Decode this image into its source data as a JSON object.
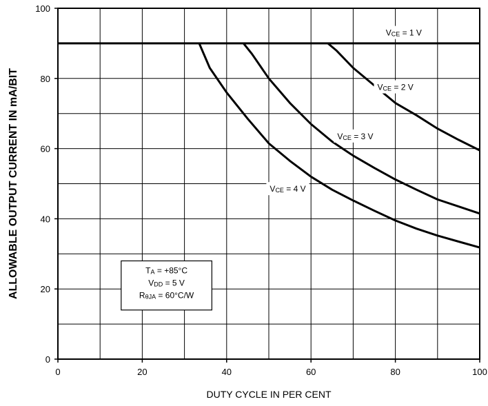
{
  "chart_data": {
    "type": "line",
    "title": "",
    "xlabel": "DUTY CYCLE IN PER CENT",
    "ylabel": "ALLOWABLE OUTPUT CURRENT IN mA/BIT",
    "xlim": [
      0,
      100
    ],
    "ylim": [
      0,
      100
    ],
    "x_ticks": [
      "0",
      "20",
      "40",
      "60",
      "80",
      "100"
    ],
    "y_ticks": [
      "0",
      "20",
      "40",
      "60",
      "80",
      "100"
    ],
    "grid": true,
    "series": [
      {
        "name": "VCE = 1 V",
        "x": [
          0,
          100
        ],
        "y": [
          90,
          90
        ]
      },
      {
        "name": "VCE = 2 V",
        "x": [
          64,
          66,
          70,
          75,
          80,
          85,
          90,
          95,
          100
        ],
        "y": [
          90,
          88,
          83,
          78,
          73,
          69.5,
          65.7,
          62.5,
          59.5
        ]
      },
      {
        "name": "VCE = 3 V",
        "x": [
          44,
          46,
          50,
          55,
          60,
          65,
          70,
          75,
          80,
          85,
          90,
          95,
          100
        ],
        "y": [
          90,
          87,
          80,
          73,
          67,
          62,
          58,
          54.5,
          51.2,
          48.3,
          45.5,
          43.5,
          41.5
        ]
      },
      {
        "name": "VCE = 4 V",
        "x": [
          33.5,
          36,
          40,
          45,
          50,
          55,
          60,
          65,
          70,
          75,
          80,
          85,
          90,
          95,
          100
        ],
        "y": [
          90,
          83,
          76,
          68.5,
          61.5,
          56.5,
          52,
          48.3,
          45.2,
          42.3,
          39.5,
          37.2,
          35.2,
          33.5,
          31.8
        ]
      }
    ],
    "curve_labels": [
      {
        "lead": "V",
        "sub": "CE",
        "tail": " = 1 V",
        "x": 82,
        "y": 93
      },
      {
        "lead": "V",
        "sub": "CE",
        "tail": " = 2 V",
        "x": 80,
        "y": 77.5
      },
      {
        "lead": "V",
        "sub": "CE",
        "tail": " = 3 V",
        "x": 70.5,
        "y": 63.5
      },
      {
        "lead": "V",
        "sub": "CE",
        "tail": " = 4 V",
        "x": 54.5,
        "y": 48.5
      }
    ],
    "info_box": [
      {
        "lead": "T",
        "sub": "A",
        "tail": " = +85°C"
      },
      {
        "lead": "V",
        "sub": "DD",
        "tail": " = 5 V"
      },
      {
        "lead": "R",
        "sub": "θJA",
        "tail": " = 60°C/W"
      }
    ]
  }
}
